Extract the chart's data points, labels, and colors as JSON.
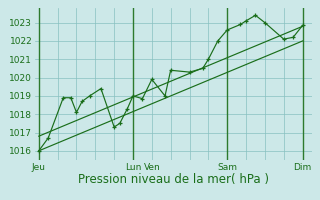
{
  "bg_color": "#cce8e8",
  "grid_color": "#88c0c0",
  "line_color": "#1a6e1a",
  "vline_color": "#2d7a2d",
  "ylim": [
    1015.5,
    1023.8
  ],
  "yticks": [
    1016,
    1017,
    1018,
    1019,
    1020,
    1021,
    1022,
    1023
  ],
  "xlabel": "Pression niveau de la mer( hPa )",
  "xlabel_fontsize": 8.5,
  "tick_fontsize": 6.5,
  "xtick_labels": [
    "Jeu",
    "",
    "",
    "",
    "",
    "Lun",
    "Ven",
    "",
    "",
    "",
    "Sam",
    "",
    "",
    "",
    "Dim"
  ],
  "xtick_positions": [
    0,
    1,
    2,
    3,
    4,
    5,
    6,
    7,
    8,
    9,
    10,
    11,
    12,
    13,
    14
  ],
  "xtick_show": [
    0,
    5,
    6,
    10,
    14
  ],
  "xtick_show_labels": [
    "Jeu",
    "Lun",
    "Ven",
    "Sam",
    "Dim"
  ],
  "vlines_x": [
    0,
    5,
    10,
    14
  ],
  "xlim": [
    -0.2,
    14.5
  ],
  "data_line": {
    "x": [
      0,
      0.5,
      1.3,
      1.7,
      2.0,
      2.3,
      2.7,
      3.3,
      4.0,
      4.3,
      4.7,
      5.0,
      5.5,
      6.0,
      6.7,
      7.0,
      8.0,
      8.7,
      9.0,
      9.5,
      10.0,
      10.7,
      11.0,
      11.5,
      12.0,
      13.0,
      13.5,
      14.0
    ],
    "y": [
      1016.0,
      1016.7,
      1018.9,
      1018.9,
      1018.1,
      1018.7,
      1019.0,
      1019.4,
      1017.3,
      1017.5,
      1018.3,
      1019.0,
      1018.85,
      1019.9,
      1019.0,
      1020.4,
      1020.3,
      1020.5,
      1021.0,
      1022.0,
      1022.6,
      1022.9,
      1023.1,
      1023.4,
      1023.0,
      1022.1,
      1022.2,
      1022.85
    ]
  },
  "trend_line1": {
    "x": [
      0,
      14
    ],
    "y": [
      1016.0,
      1022.0
    ]
  },
  "trend_line2": {
    "x": [
      0,
      14
    ],
    "y": [
      1016.8,
      1022.8
    ]
  }
}
